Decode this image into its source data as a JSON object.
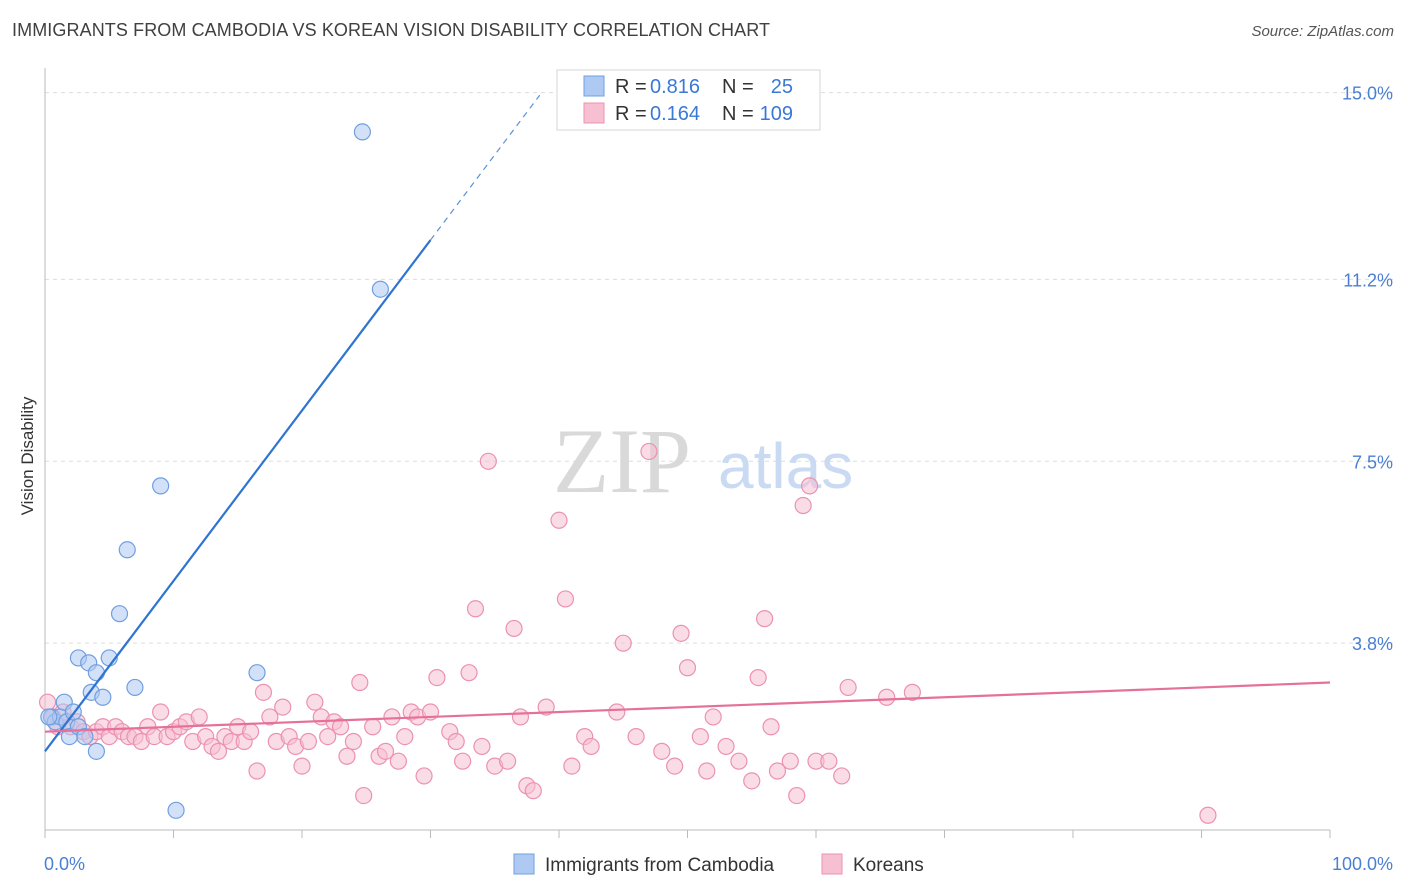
{
  "header": {
    "title": "IMMIGRANTS FROM CAMBODIA VS KOREAN VISION DISABILITY CORRELATION CHART",
    "source": "Source: ZipAtlas.com"
  },
  "watermark": {
    "zip": "ZIP",
    "atlas": "atlas"
  },
  "colors": {
    "blue_fill": "#aec9f2",
    "blue_stroke": "#6f9fe0",
    "blue_line": "#2f74d0",
    "pink_fill": "#f6bfd2",
    "pink_stroke": "#ec91b1",
    "pink_line": "#e5709a",
    "grid": "#dddddd",
    "tick_text": "#4a7fd4"
  },
  "legend": {
    "r_label": "R =",
    "n_label": "N =",
    "series": [
      {
        "r": "0.816",
        "n": "25"
      },
      {
        "r": "0.164",
        "n": "109"
      }
    ]
  },
  "chart_data": {
    "type": "scatter",
    "title": "IMMIGRANTS FROM CAMBODIA VS KOREAN VISION DISABILITY CORRELATION CHART",
    "xlabel": "",
    "ylabel": "Vision Disability",
    "xlim": [
      0,
      100
    ],
    "ylim": [
      0,
      15.5
    ],
    "x_tick_labels": [
      "0.0%",
      "100.0%"
    ],
    "y_ticks": [
      3.8,
      7.5,
      11.2,
      15.0
    ],
    "y_tick_labels": [
      "3.8%",
      "7.5%",
      "11.2%",
      "15.0%"
    ],
    "grid": true,
    "series": [
      {
        "name": "Immigrants from Cambodia",
        "color": "blue",
        "r": 0.816,
        "n": 25,
        "trend": {
          "x0": 0,
          "y0": 1.6,
          "x1": 30,
          "y1": 12.0,
          "dashed_to_x": 38.5
        },
        "points": [
          [
            0.5,
            2.3
          ],
          [
            0.8,
            2.2
          ],
          [
            1.2,
            2.3
          ],
          [
            1.5,
            2.6
          ],
          [
            1.7,
            2.2
          ],
          [
            1.9,
            1.9
          ],
          [
            2.2,
            2.4
          ],
          [
            2.6,
            2.1
          ],
          [
            2.6,
            3.5
          ],
          [
            3.1,
            1.9
          ],
          [
            3.4,
            3.4
          ],
          [
            3.6,
            2.8
          ],
          [
            4.0,
            3.2
          ],
          [
            4.0,
            1.6
          ],
          [
            4.5,
            2.7
          ],
          [
            5.0,
            3.5
          ],
          [
            5.8,
            4.4
          ],
          [
            6.4,
            5.7
          ],
          [
            7.0,
            2.9
          ],
          [
            9.0,
            7.0
          ],
          [
            10.2,
            0.4
          ],
          [
            16.5,
            3.2
          ],
          [
            24.7,
            14.2
          ],
          [
            26.1,
            11.0
          ],
          [
            0.3,
            2.3
          ]
        ]
      },
      {
        "name": "Koreans",
        "color": "pink",
        "r": 0.164,
        "n": 109,
        "trend": {
          "x0": 0,
          "y0": 2.0,
          "x1": 100,
          "y1": 3.0
        },
        "points": [
          [
            0.2,
            2.6
          ],
          [
            0.6,
            2.3
          ],
          [
            1.0,
            2.1
          ],
          [
            1.4,
            2.4
          ],
          [
            2.0,
            2.1
          ],
          [
            2.5,
            2.2
          ],
          [
            3.0,
            2.0
          ],
          [
            3.5,
            1.9
          ],
          [
            4.0,
            2.0
          ],
          [
            4.5,
            2.1
          ],
          [
            5.0,
            1.9
          ],
          [
            5.5,
            2.1
          ],
          [
            6.0,
            2.0
          ],
          [
            6.5,
            1.9
          ],
          [
            7.0,
            1.9
          ],
          [
            7.5,
            1.8
          ],
          [
            8.0,
            2.1
          ],
          [
            8.5,
            1.9
          ],
          [
            9.0,
            2.4
          ],
          [
            9.5,
            1.9
          ],
          [
            10.0,
            2.0
          ],
          [
            10.5,
            2.1
          ],
          [
            11.0,
            2.2
          ],
          [
            11.5,
            1.8
          ],
          [
            12.0,
            2.3
          ],
          [
            12.5,
            1.9
          ],
          [
            13.0,
            1.7
          ],
          [
            13.5,
            1.6
          ],
          [
            14.0,
            1.9
          ],
          [
            14.5,
            1.8
          ],
          [
            15.0,
            2.1
          ],
          [
            15.5,
            1.8
          ],
          [
            16.0,
            2.0
          ],
          [
            16.5,
            1.2
          ],
          [
            17.0,
            2.8
          ],
          [
            17.5,
            2.3
          ],
          [
            18.0,
            1.8
          ],
          [
            18.5,
            2.5
          ],
          [
            19.0,
            1.9
          ],
          [
            19.5,
            1.7
          ],
          [
            20.0,
            1.3
          ],
          [
            20.5,
            1.8
          ],
          [
            21.0,
            2.6
          ],
          [
            21.5,
            2.3
          ],
          [
            22.0,
            1.9
          ],
          [
            22.5,
            2.2
          ],
          [
            23.0,
            2.1
          ],
          [
            23.5,
            1.5
          ],
          [
            24.0,
            1.8
          ],
          [
            24.5,
            3.0
          ],
          [
            24.8,
            0.7
          ],
          [
            25.5,
            2.1
          ],
          [
            26.0,
            1.5
          ],
          [
            26.5,
            1.6
          ],
          [
            27.0,
            2.3
          ],
          [
            27.5,
            1.4
          ],
          [
            28.0,
            1.9
          ],
          [
            28.5,
            2.4
          ],
          [
            29.0,
            2.3
          ],
          [
            29.5,
            1.1
          ],
          [
            30.0,
            2.4
          ],
          [
            30.5,
            3.1
          ],
          [
            31.5,
            2.0
          ],
          [
            32.0,
            1.8
          ],
          [
            32.5,
            1.4
          ],
          [
            33.0,
            3.2
          ],
          [
            33.5,
            4.5
          ],
          [
            34.0,
            1.7
          ],
          [
            34.5,
            7.5
          ],
          [
            35.0,
            1.3
          ],
          [
            36.0,
            1.4
          ],
          [
            36.5,
            4.1
          ],
          [
            37.0,
            2.3
          ],
          [
            37.5,
            0.9
          ],
          [
            38.0,
            0.8
          ],
          [
            39.0,
            2.5
          ],
          [
            40.0,
            6.3
          ],
          [
            40.5,
            4.7
          ],
          [
            41.0,
            1.3
          ],
          [
            42.0,
            1.9
          ],
          [
            42.5,
            1.7
          ],
          [
            44.5,
            2.4
          ],
          [
            45.0,
            3.8
          ],
          [
            46.0,
            1.9
          ],
          [
            47.0,
            7.7
          ],
          [
            48.0,
            1.6
          ],
          [
            49.0,
            1.3
          ],
          [
            49.5,
            4.0
          ],
          [
            50.0,
            3.3
          ],
          [
            51.0,
            1.9
          ],
          [
            51.5,
            1.2
          ],
          [
            52.0,
            2.3
          ],
          [
            53.0,
            1.7
          ],
          [
            54.0,
            1.4
          ],
          [
            55.0,
            1.0
          ],
          [
            55.5,
            3.1
          ],
          [
            56.0,
            4.3
          ],
          [
            56.5,
            2.1
          ],
          [
            57.0,
            1.2
          ],
          [
            58.0,
            1.4
          ],
          [
            58.5,
            0.7
          ],
          [
            59.0,
            6.6
          ],
          [
            59.5,
            7.0
          ],
          [
            60.0,
            1.4
          ],
          [
            61.0,
            1.4
          ],
          [
            62.0,
            1.1
          ],
          [
            62.5,
            2.9
          ],
          [
            65.5,
            2.7
          ],
          [
            67.5,
            2.8
          ],
          [
            90.5,
            0.3
          ]
        ]
      }
    ]
  },
  "bottom_legend": {
    "items": [
      {
        "label": "Immigrants from Cambodia"
      },
      {
        "label": "Koreans"
      }
    ]
  }
}
